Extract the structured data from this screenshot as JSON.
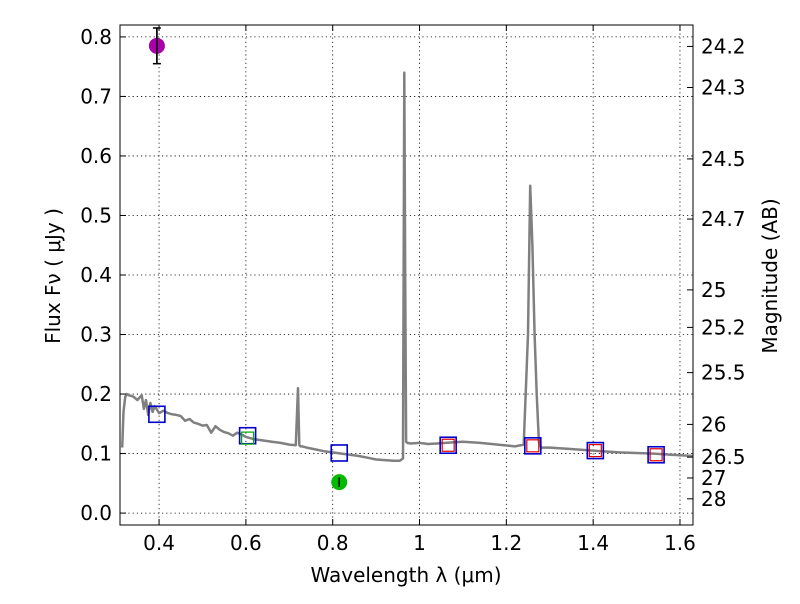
{
  "chart_data": {
    "type": "scatter",
    "title": "",
    "xlabel": "Wavelength  λ (μm)",
    "ylabel": "Flux  Fν  ( μJy )",
    "y2label": "Magnitude (AB)",
    "xlim": [
      0.31,
      1.63
    ],
    "ylim": [
      -0.02,
      0.82
    ],
    "grid": true,
    "x_ticks": [
      0.4,
      0.6,
      0.8,
      1.0,
      1.2,
      1.4,
      1.6
    ],
    "x_tick_labels": [
      "0.4",
      "0.6",
      "0.8",
      "1",
      "1.2",
      "1.4",
      "1.6"
    ],
    "y_ticks": [
      0.0,
      0.1,
      0.2,
      0.3,
      0.4,
      0.5,
      0.6,
      0.7,
      0.8
    ],
    "y_tick_labels": [
      "0.0",
      "0.1",
      "0.2",
      "0.3",
      "0.4",
      "0.5",
      "0.6",
      "0.7",
      "0.8"
    ],
    "magnitude_ticks": [
      {
        "label": "24.2",
        "flux": 0.784
      },
      {
        "label": "24.3",
        "flux": 0.715
      },
      {
        "label": "24.5",
        "flux": 0.595
      },
      {
        "label": "24.7",
        "flux": 0.494
      },
      {
        "label": "25",
        "flux": 0.375
      },
      {
        "label": "25.2",
        "flux": 0.312
      },
      {
        "label": "25.5",
        "flux": 0.236
      },
      {
        "label": "26",
        "flux": 0.149
      },
      {
        "label": "26.5",
        "flux": 0.094
      },
      {
        "label": "27",
        "flux": 0.059
      },
      {
        "label": "28",
        "flux": 0.024
      }
    ],
    "colors": {
      "model": "#808080",
      "box_blue": "#0000cc",
      "box_red": "#dd0000",
      "box_green": "#00aa00",
      "magenta": "#aa00aa",
      "green_point": "#00bb00",
      "errorbar": "#000000"
    },
    "series": [
      {
        "name": "model spectrum",
        "type": "line",
        "x": [
          0.315,
          0.318,
          0.322,
          0.326,
          0.33,
          0.34,
          0.35,
          0.36,
          0.365,
          0.37,
          0.375,
          0.38,
          0.385,
          0.39,
          0.4,
          0.41,
          0.42,
          0.43,
          0.44,
          0.45,
          0.46,
          0.47,
          0.48,
          0.49,
          0.5,
          0.51,
          0.52,
          0.53,
          0.54,
          0.55,
          0.56,
          0.57,
          0.58,
          0.59,
          0.6,
          0.62,
          0.64,
          0.66,
          0.68,
          0.7,
          0.715,
          0.72,
          0.723,
          0.726,
          0.73,
          0.74,
          0.76,
          0.78,
          0.8,
          0.82,
          0.84,
          0.86,
          0.88,
          0.9,
          0.92,
          0.94,
          0.955,
          0.962,
          0.965,
          0.967,
          0.969,
          0.972,
          0.98,
          1.0,
          1.02,
          1.04,
          1.06,
          1.08,
          1.1,
          1.14,
          1.18,
          1.22,
          1.24,
          1.25,
          1.255,
          1.26,
          1.265,
          1.27,
          1.275,
          1.28,
          1.3,
          1.34,
          1.38,
          1.42,
          1.46,
          1.5,
          1.54,
          1.58,
          1.63
        ],
        "y": [
          0.11,
          0.17,
          0.195,
          0.2,
          0.198,
          0.196,
          0.19,
          0.198,
          0.175,
          0.19,
          0.165,
          0.185,
          0.17,
          0.18,
          0.168,
          0.172,
          0.168,
          0.166,
          0.165,
          0.163,
          0.155,
          0.158,
          0.152,
          0.15,
          0.147,
          0.148,
          0.135,
          0.146,
          0.14,
          0.136,
          0.134,
          0.13,
          0.135,
          0.132,
          0.128,
          0.124,
          0.122,
          0.12,
          0.118,
          0.115,
          0.114,
          0.21,
          0.114,
          0.112,
          0.112,
          0.11,
          0.107,
          0.104,
          0.102,
          0.1,
          0.098,
          0.096,
          0.093,
          0.09,
          0.089,
          0.088,
          0.088,
          0.092,
          0.74,
          0.4,
          0.12,
          0.118,
          0.117,
          0.118,
          0.116,
          0.117,
          0.118,
          0.119,
          0.12,
          0.118,
          0.115,
          0.112,
          0.115,
          0.3,
          0.55,
          0.45,
          0.3,
          0.2,
          0.12,
          0.11,
          0.11,
          0.108,
          0.106,
          0.104,
          0.102,
          0.101,
          0.1,
          0.098,
          0.096
        ]
      },
      {
        "name": "filter boxes",
        "type": "square-marker",
        "points": [
          {
            "x": 0.395,
            "y": 0.166,
            "color": "blue"
          },
          {
            "x": 0.604,
            "y": 0.13,
            "color": "blue"
          },
          {
            "x": 0.604,
            "y": 0.126,
            "color": "green",
            "small": true
          },
          {
            "x": 0.815,
            "y": 0.101,
            "color": "blue"
          },
          {
            "x": 1.066,
            "y": 0.114,
            "color": "blue"
          },
          {
            "x": 1.066,
            "y": 0.114,
            "color": "red",
            "small": true
          },
          {
            "x": 1.261,
            "y": 0.113,
            "color": "blue"
          },
          {
            "x": 1.261,
            "y": 0.113,
            "color": "red",
            "small": true
          },
          {
            "x": 1.405,
            "y": 0.105,
            "color": "blue"
          },
          {
            "x": 1.405,
            "y": 0.105,
            "color": "red",
            "small": true
          },
          {
            "x": 1.545,
            "y": 0.098,
            "color": "blue"
          },
          {
            "x": 1.545,
            "y": 0.098,
            "color": "red",
            "small": true
          }
        ]
      },
      {
        "name": "magenta measurement",
        "type": "point-errorbar",
        "x": 0.395,
        "y": 0.785,
        "yerr": 0.03,
        "color": "magenta"
      },
      {
        "name": "green measurement",
        "type": "point-errorbar",
        "x": 0.815,
        "y": 0.052,
        "yerr": 0.008,
        "color": "green"
      }
    ]
  }
}
